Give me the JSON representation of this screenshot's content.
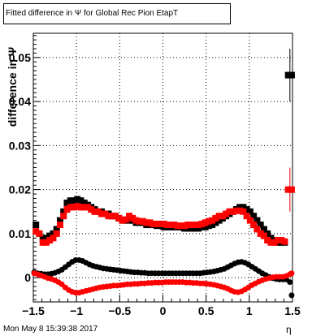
{
  "title": "Fitted difference in  Ψ  for Global Rec Pion EtapT",
  "ylabel": "difference in  Ψ",
  "xlabel": "η",
  "timestamp": "Mon May  8 15:39:38 2017",
  "colors": {
    "series1": "#000000",
    "series2": "#ff0000",
    "grid": "#000000"
  },
  "chart_data": {
    "type": "scatter",
    "title": "Fitted difference in  Ψ  for Global Rec Pion EtapT",
    "xlabel": "η",
    "ylabel": "difference in  Ψ",
    "xlim": [
      -1.5,
      1.5
    ],
    "ylim": [
      -0.0055,
      0.0555
    ],
    "x_ticks": [
      "−1.5",
      "−1",
      "−0.5",
      "0",
      "0.5",
      "1",
      "1.5"
    ],
    "y_ticks": [
      "0",
      "0.01",
      "0.02",
      "0.03",
      "0.04",
      "0.05"
    ],
    "grid": true,
    "markers": [
      {
        "name": "fit-mean-black-squares",
        "color": "#000000",
        "shape": "square",
        "x": [
          -1.47,
          -1.43,
          -1.39,
          -1.35,
          -1.31,
          -1.27,
          -1.23,
          -1.19,
          -1.15,
          -1.11,
          -1.07,
          -1.03,
          -0.99,
          -0.95,
          -0.91,
          -0.87,
          -0.83,
          -0.79,
          -0.75,
          -0.71,
          -0.67,
          -0.63,
          -0.59,
          -0.55,
          -0.51,
          -0.47,
          -0.43,
          -0.39,
          -0.35,
          -0.31,
          -0.27,
          -0.23,
          -0.19,
          -0.15,
          -0.11,
          -0.07,
          -0.03,
          0.01,
          0.05,
          0.09,
          0.13,
          0.17,
          0.21,
          0.25,
          0.29,
          0.33,
          0.37,
          0.41,
          0.45,
          0.49,
          0.53,
          0.57,
          0.61,
          0.65,
          0.69,
          0.73,
          0.77,
          0.81,
          0.85,
          0.89,
          0.93,
          0.97,
          1.01,
          1.05,
          1.09,
          1.13,
          1.17,
          1.21,
          1.25,
          1.29,
          1.33,
          1.37,
          1.41,
          1.45,
          1.49
        ],
        "y": [
          0.012,
          0.01,
          0.009,
          0.009,
          0.0095,
          0.01,
          0.011,
          0.013,
          0.015,
          0.017,
          0.0175,
          0.0175,
          0.0178,
          0.0175,
          0.017,
          0.0165,
          0.016,
          0.0155,
          0.015,
          0.015,
          0.0145,
          0.0145,
          0.014,
          0.014,
          0.0135,
          0.013,
          0.013,
          0.013,
          0.013,
          0.0125,
          0.0125,
          0.0125,
          0.012,
          0.012,
          0.012,
          0.0118,
          0.0118,
          0.0115,
          0.0115,
          0.0115,
          0.0115,
          0.0115,
          0.0115,
          0.0112,
          0.0112,
          0.0112,
          0.0112,
          0.0112,
          0.0115,
          0.0115,
          0.0118,
          0.012,
          0.0125,
          0.013,
          0.0135,
          0.014,
          0.0145,
          0.015,
          0.0155,
          0.016,
          0.016,
          0.0155,
          0.015,
          0.014,
          0.013,
          0.012,
          0.011,
          0.01,
          0.009,
          0.0085,
          0.008,
          0.008,
          0.008,
          0.046,
          0.046
        ]
      },
      {
        "name": "fit-mean-red-squares",
        "color": "#ff0000",
        "shape": "square",
        "x": [
          -1.47,
          -1.43,
          -1.39,
          -1.35,
          -1.31,
          -1.27,
          -1.23,
          -1.19,
          -1.15,
          -1.11,
          -1.07,
          -1.03,
          -0.99,
          -0.95,
          -0.91,
          -0.87,
          -0.83,
          -0.79,
          -0.75,
          -0.71,
          -0.67,
          -0.63,
          -0.59,
          -0.55,
          -0.51,
          -0.47,
          -0.43,
          -0.39,
          -0.35,
          -0.31,
          -0.27,
          -0.23,
          -0.19,
          -0.15,
          -0.11,
          -0.07,
          -0.03,
          0.01,
          0.05,
          0.09,
          0.13,
          0.17,
          0.21,
          0.25,
          0.29,
          0.33,
          0.37,
          0.41,
          0.45,
          0.49,
          0.53,
          0.57,
          0.61,
          0.65,
          0.69,
          0.73,
          0.77,
          0.81,
          0.85,
          0.89,
          0.93,
          0.97,
          1.01,
          1.05,
          1.09,
          1.13,
          1.17,
          1.21,
          1.25,
          1.29,
          1.33,
          1.37,
          1.41,
          1.45,
          1.49
        ],
        "y": [
          0.0105,
          0.01,
          0.008,
          0.008,
          0.0085,
          0.009,
          0.01,
          0.012,
          0.014,
          0.0155,
          0.016,
          0.016,
          0.0162,
          0.016,
          0.016,
          0.016,
          0.0155,
          0.015,
          0.015,
          0.0145,
          0.0145,
          0.014,
          0.014,
          0.014,
          0.0135,
          0.013,
          0.0132,
          0.014,
          0.0135,
          0.013,
          0.0128,
          0.0128,
          0.0125,
          0.0125,
          0.0122,
          0.0122,
          0.0122,
          0.0122,
          0.012,
          0.012,
          0.012,
          0.0118,
          0.0118,
          0.0118,
          0.012,
          0.012,
          0.012,
          0.012,
          0.0122,
          0.0125,
          0.0128,
          0.013,
          0.0135,
          0.014,
          0.014,
          0.0145,
          0.015,
          0.015,
          0.0152,
          0.0152,
          0.015,
          0.014,
          0.013,
          0.012,
          0.011,
          0.01,
          0.0095,
          0.0085,
          0.008,
          0.008,
          0.0085,
          0.0085,
          0.0082,
          0.02,
          0.02
        ]
      },
      {
        "name": "fit-sigma-black-dots",
        "color": "#000000",
        "shape": "circle",
        "x": [
          -1.49,
          -1.45,
          -1.41,
          -1.37,
          -1.33,
          -1.29,
          -1.25,
          -1.21,
          -1.17,
          -1.13,
          -1.09,
          -1.05,
          -1.01,
          -0.97,
          -0.93,
          -0.89,
          -0.85,
          -0.81,
          -0.77,
          -0.73,
          -0.69,
          -0.65,
          -0.61,
          -0.57,
          -0.53,
          -0.49,
          -0.45,
          -0.41,
          -0.37,
          -0.33,
          -0.29,
          -0.25,
          -0.21,
          -0.17,
          -0.13,
          -0.09,
          -0.05,
          -0.01,
          0.03,
          0.07,
          0.11,
          0.15,
          0.19,
          0.23,
          0.27,
          0.31,
          0.35,
          0.39,
          0.43,
          0.47,
          0.51,
          0.55,
          0.59,
          0.63,
          0.67,
          0.71,
          0.75,
          0.79,
          0.83,
          0.87,
          0.91,
          0.95,
          0.99,
          1.03,
          1.07,
          1.11,
          1.15,
          1.19,
          1.23,
          1.27,
          1.31,
          1.35,
          1.39,
          1.43,
          1.47,
          1.49
        ],
        "y": [
          0.0012,
          0.001,
          0.0009,
          0.0008,
          0.0008,
          0.0009,
          0.0011,
          0.0014,
          0.0018,
          0.0024,
          0.003,
          0.0036,
          0.004,
          0.004,
          0.0038,
          0.0034,
          0.003,
          0.0027,
          0.0025,
          0.0023,
          0.0021,
          0.002,
          0.0019,
          0.0018,
          0.0017,
          0.0016,
          0.0015,
          0.0014,
          0.0013,
          0.0012,
          0.0012,
          0.0011,
          0.0011,
          0.001,
          0.001,
          0.001,
          0.001,
          0.001,
          0.001,
          0.001,
          0.001,
          0.001,
          0.001,
          0.001,
          0.001,
          0.001,
          0.001,
          0.001,
          0.001,
          0.0011,
          0.0012,
          0.0013,
          0.0014,
          0.0016,
          0.0018,
          0.002,
          0.0024,
          0.0028,
          0.0032,
          0.0035,
          0.0036,
          0.0034,
          0.003,
          0.0025,
          0.002,
          0.0015,
          0.001,
          0.0006,
          0.0002,
          -0.0001,
          -0.0003,
          -0.0004,
          -0.0004,
          -0.0004,
          -0.001,
          -0.004
        ]
      },
      {
        "name": "fit-sigma-red-dots",
        "color": "#ff0000",
        "shape": "circle",
        "x": [
          -1.49,
          -1.45,
          -1.41,
          -1.37,
          -1.33,
          -1.29,
          -1.25,
          -1.21,
          -1.17,
          -1.13,
          -1.09,
          -1.05,
          -1.01,
          -0.97,
          -0.93,
          -0.89,
          -0.85,
          -0.81,
          -0.77,
          -0.73,
          -0.69,
          -0.65,
          -0.61,
          -0.57,
          -0.53,
          -0.49,
          -0.45,
          -0.41,
          -0.37,
          -0.33,
          -0.29,
          -0.25,
          -0.21,
          -0.17,
          -0.13,
          -0.09,
          -0.05,
          -0.01,
          0.03,
          0.07,
          0.11,
          0.15,
          0.19,
          0.23,
          0.27,
          0.31,
          0.35,
          0.39,
          0.43,
          0.47,
          0.51,
          0.55,
          0.59,
          0.63,
          0.67,
          0.71,
          0.75,
          0.79,
          0.83,
          0.87,
          0.91,
          0.95,
          0.99,
          1.03,
          1.07,
          1.11,
          1.15,
          1.19,
          1.23,
          1.27,
          1.31,
          1.35,
          1.39,
          1.43,
          1.47,
          1.49
        ],
        "y": [
          0.001,
          0.0008,
          0.0005,
          0.0002,
          -0.0001,
          -0.0003,
          -0.0006,
          -0.001,
          -0.0015,
          -0.0022,
          -0.0028,
          -0.0032,
          -0.0034,
          -0.0034,
          -0.0032,
          -0.003,
          -0.0028,
          -0.0026,
          -0.0024,
          -0.0022,
          -0.0021,
          -0.002,
          -0.0019,
          -0.0018,
          -0.0018,
          -0.0017,
          -0.0016,
          -0.0015,
          -0.0015,
          -0.0014,
          -0.0014,
          -0.0013,
          -0.0013,
          -0.0012,
          -0.0012,
          -0.0011,
          -0.0011,
          -0.0011,
          -0.001,
          -0.001,
          -0.001,
          -0.001,
          -0.001,
          -0.001,
          -0.0011,
          -0.0011,
          -0.0012,
          -0.0012,
          -0.0013,
          -0.0013,
          -0.0014,
          -0.0015,
          -0.0016,
          -0.0018,
          -0.002,
          -0.0022,
          -0.0025,
          -0.0029,
          -0.0032,
          -0.0033,
          -0.0031,
          -0.0027,
          -0.0022,
          -0.0017,
          -0.0013,
          -0.0009,
          -0.0006,
          -0.0003,
          -0.0001,
          0.0001,
          0.0002,
          0.0002,
          0.0002,
          0.0004,
          0.0008,
          0.001
        ]
      }
    ],
    "error_bars": [
      {
        "x": 1.47,
        "y_low": 0.04,
        "y_high": 0.052,
        "color": "#000000"
      },
      {
        "x": 1.47,
        "y_low": 0.015,
        "y_high": 0.025,
        "color": "#ff0000"
      }
    ]
  }
}
